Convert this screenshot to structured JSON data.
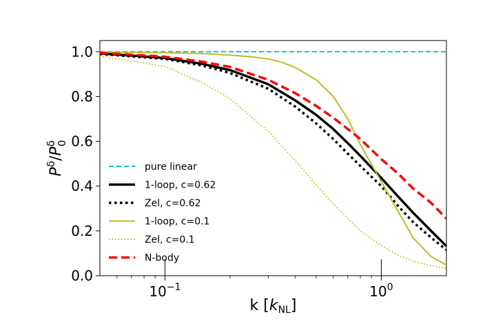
{
  "chart_data": {
    "type": "line",
    "title": "",
    "xlabel": "k [",
    "xlabel_symbol": "k",
    "xlabel_subscript": "NL",
    "xlabel_close": "]",
    "ylabel": "P^δ/P_0^δ",
    "ylabel_num": "P",
    "ylabel_num_sup": "δ",
    "ylabel_slash": "/",
    "ylabel_den": "P",
    "ylabel_den_sup": "δ",
    "ylabel_den_sub": "0",
    "xscale": "log",
    "xlim": [
      0.05,
      2.0
    ],
    "ylim": [
      0.0,
      1.05
    ],
    "yticks": [
      0.0,
      0.2,
      0.4,
      0.6,
      0.8,
      1.0
    ],
    "ytick_labels": [
      "0.0",
      "0.2",
      "0.4",
      "0.6",
      "0.8",
      "1.0"
    ],
    "xticks": [
      0.1,
      1.0
    ],
    "xtick_base": "10",
    "xtick_exponents": [
      "−1",
      "0"
    ],
    "legend_position": "lower-left",
    "series": [
      {
        "name": "pure linear",
        "color": "#17becf",
        "style": "dashed",
        "weight": "thin",
        "x": [
          0.05,
          2.0
        ],
        "y": [
          1.0,
          1.0
        ]
      },
      {
        "name": "1-loop, c=0.62",
        "color": "#000000",
        "style": "solid",
        "weight": "thick",
        "x": [
          0.05,
          0.1,
          0.15,
          0.2,
          0.3,
          0.4,
          0.5,
          0.6,
          0.7,
          0.8,
          1.0,
          1.2,
          1.4,
          1.7,
          2.0
        ],
        "y": [
          0.993,
          0.972,
          0.945,
          0.918,
          0.855,
          0.783,
          0.718,
          0.655,
          0.592,
          0.535,
          0.436,
          0.352,
          0.282,
          0.2,
          0.132
        ]
      },
      {
        "name": "Zel, c=0.62",
        "color": "#000000",
        "style": "dotted",
        "weight": "thick",
        "x": [
          0.05,
          0.1,
          0.15,
          0.2,
          0.3,
          0.4,
          0.5,
          0.6,
          0.7,
          0.8,
          1.0,
          1.2,
          1.4,
          1.7,
          2.0
        ],
        "y": [
          0.99,
          0.968,
          0.938,
          0.905,
          0.835,
          0.755,
          0.68,
          0.61,
          0.545,
          0.49,
          0.4,
          0.31,
          0.24,
          0.17,
          0.115
        ]
      },
      {
        "name": "1-loop, c=0.1",
        "color": "#bcbd22",
        "style": "solid",
        "weight": "thin",
        "x": [
          0.05,
          0.1,
          0.15,
          0.2,
          0.25,
          0.3,
          0.35,
          0.4,
          0.5,
          0.6,
          0.7,
          0.8,
          1.0,
          1.2,
          1.4,
          1.7,
          2.0
        ],
        "y": [
          0.998,
          0.996,
          0.992,
          0.985,
          0.978,
          0.968,
          0.952,
          0.93,
          0.875,
          0.8,
          0.7,
          0.585,
          0.42,
          0.285,
          0.17,
          0.085,
          0.048
        ]
      },
      {
        "name": "Zel, c=0.1",
        "color": "#bcbd22",
        "style": "dotted",
        "weight": "thin",
        "x": [
          0.05,
          0.1,
          0.15,
          0.2,
          0.3,
          0.4,
          0.5,
          0.6,
          0.7,
          0.8,
          1.0,
          1.2,
          1.4,
          1.7,
          2.0
        ],
        "y": [
          0.98,
          0.935,
          0.86,
          0.79,
          0.645,
          0.515,
          0.405,
          0.32,
          0.255,
          0.2,
          0.135,
          0.09,
          0.065,
          0.045,
          0.033
        ]
      },
      {
        "name": "N-body",
        "color": "#ff0000",
        "style": "dashed",
        "weight": "thick",
        "x": [
          0.05,
          0.1,
          0.15,
          0.2,
          0.3,
          0.4,
          0.5,
          0.6,
          0.7,
          0.8,
          1.0,
          1.2,
          1.4,
          1.7,
          2.0
        ],
        "y": [
          0.995,
          0.978,
          0.955,
          0.932,
          0.875,
          0.815,
          0.758,
          0.705,
          0.655,
          0.61,
          0.52,
          0.455,
          0.39,
          0.325,
          0.255
        ]
      }
    ]
  }
}
